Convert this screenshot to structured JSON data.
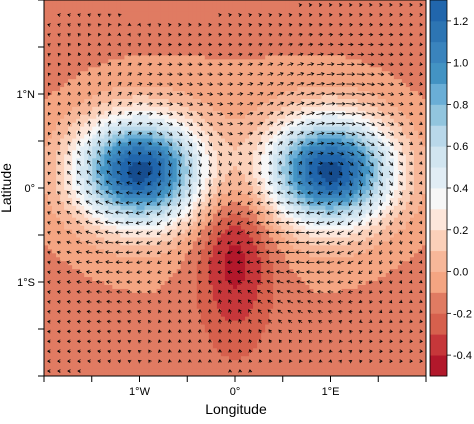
{
  "chart_data": {
    "type": "heatmap",
    "subtype": "filled-contour-with-vector-field",
    "title": "",
    "xlabel": "Longitude",
    "ylabel": "Latitude",
    "x_ticks": [
      "1°W",
      "0°",
      "1°E"
    ],
    "x_tick_values": [
      -1,
      0,
      1
    ],
    "y_ticks": [
      "1°N",
      "0°",
      "1°S"
    ],
    "y_tick_values": [
      1,
      0,
      -1
    ],
    "xlim": [
      -2,
      2
    ],
    "ylim": [
      -2,
      2
    ],
    "colorbar": {
      "levels": [
        -0.5,
        -0.4,
        -0.3,
        -0.2,
        -0.1,
        0.0,
        0.1,
        0.2,
        0.3,
        0.4,
        0.5,
        0.6,
        0.7,
        0.8,
        0.9,
        1.0,
        1.1,
        1.2,
        1.3
      ],
      "tick_labels": [
        "1.2",
        "1.0",
        "0.8",
        "0.6",
        "0.4",
        "0.2",
        "0.0",
        "-0.2",
        "-0.4"
      ],
      "tick_values": [
        1.2,
        1.0,
        0.8,
        0.6,
        0.4,
        0.2,
        0.0,
        -0.2,
        -0.4
      ],
      "colors": [
        "#b2182b",
        "#c6373a",
        "#d6604d",
        "#e07b62",
        "#f4a582",
        "#f7b799",
        "#fbd0b9",
        "#fde6da",
        "#f7f7f7",
        "#e1edf5",
        "#d1e5f0",
        "#b9d8ea",
        "#92c5de",
        "#6aaed6",
        "#4393c3",
        "#3a84bd",
        "#2d75b3",
        "#2166ac",
        "#164d8f"
      ]
    },
    "field_features": [
      {
        "kind": "maximum",
        "x": -1.0,
        "y": 0.18,
        "value": 1.3
      },
      {
        "kind": "maximum",
        "x": 1.0,
        "y": 0.18,
        "value": 1.3
      },
      {
        "kind": "minimum",
        "x": 0.0,
        "y": -0.7,
        "value": -0.5
      },
      {
        "kind": "background",
        "value": -0.15
      }
    ],
    "vectors": {
      "grid": "regular",
      "style": "arrows",
      "color": "#000000"
    },
    "grid": false,
    "legend": "right"
  }
}
